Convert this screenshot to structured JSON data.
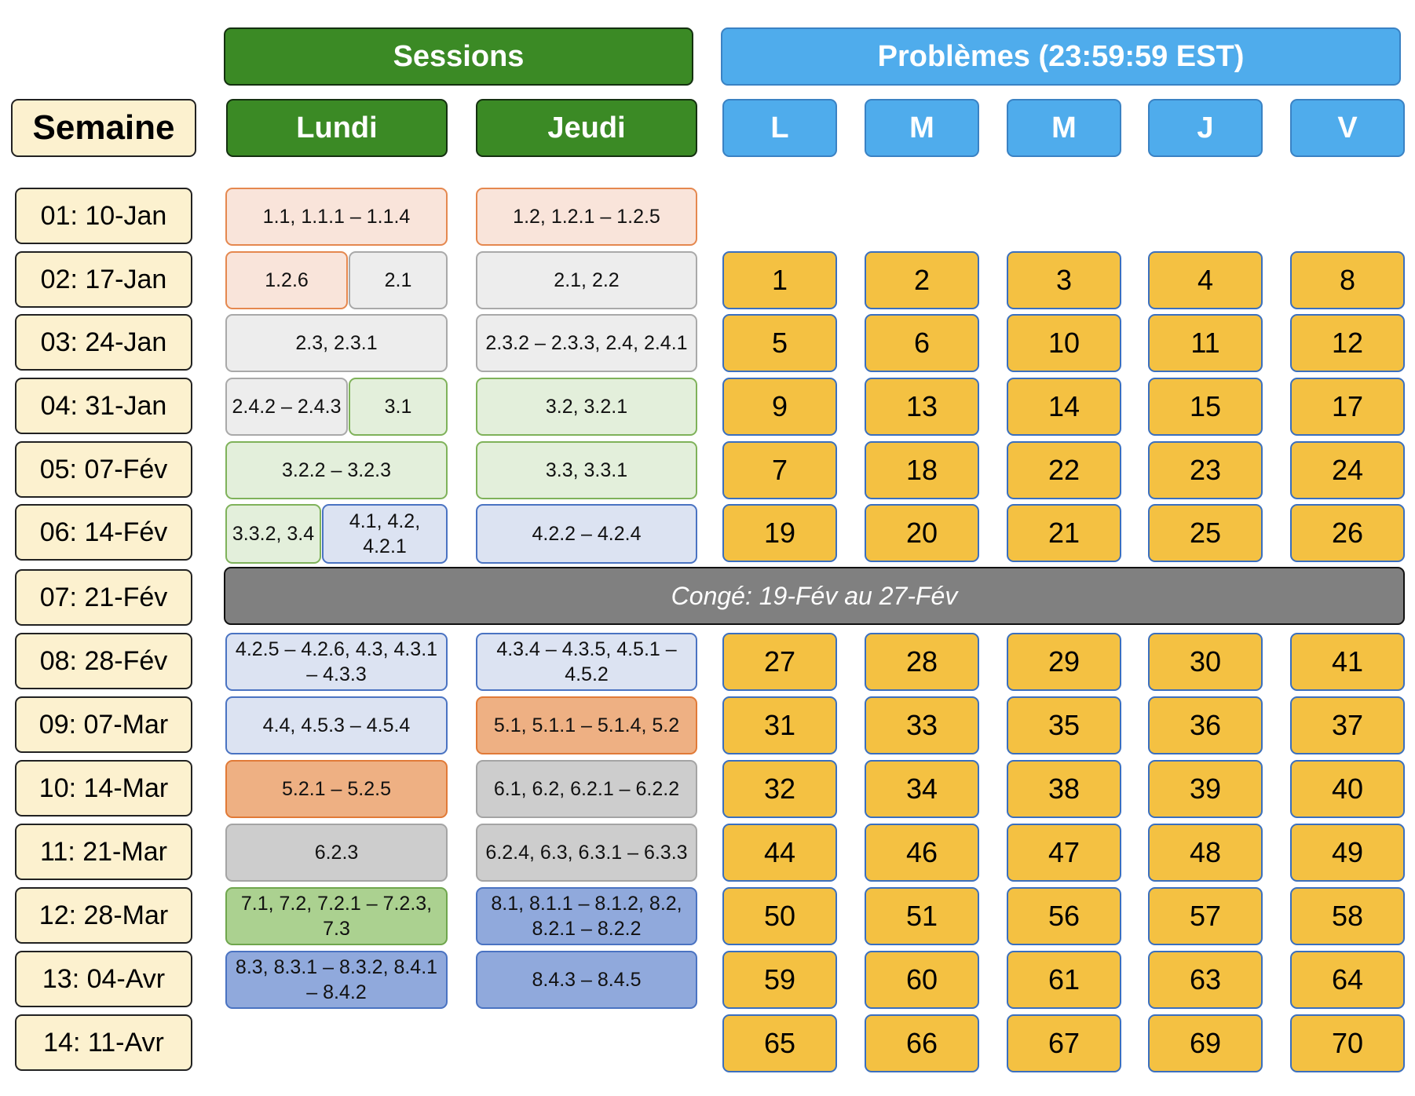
{
  "header": {
    "sessions_title": "Sessions",
    "problems_title": "Problèmes (23:59:59 EST)",
    "week_label": "Semaine",
    "session_days": [
      "Lundi",
      "Jeudi"
    ],
    "problem_days": [
      "L",
      "M",
      "M",
      "J",
      "V"
    ]
  },
  "weeks": [
    "01: 10-Jan",
    "02: 17-Jan",
    "03: 24-Jan",
    "04: 31-Jan",
    "05: 07-Fév",
    "06: 14-Fév",
    "07: 21-Fév",
    "08: 28-Fév",
    "09: 07-Mar",
    "10: 14-Mar",
    "11: 21-Mar",
    "12: 28-Mar",
    "13: 04-Avr",
    "14: 11-Avr"
  ],
  "sessions": [
    {
      "week": 1,
      "day": "Lundi",
      "text": "1.1, 1.1.1 – 1.1.4",
      "color": "#f9e4da"
    },
    {
      "week": 1,
      "day": "Jeudi",
      "text": "1.2, 1.2.1 – 1.2.5",
      "color": "#f9e4da"
    },
    {
      "week": 2,
      "day": "Lundi",
      "text": "1.2.6",
      "color": "#f9e4da"
    },
    {
      "week": 2,
      "day": "Lundi",
      "text": "2.1",
      "color": "#ededed"
    },
    {
      "week": 2,
      "day": "Jeudi",
      "text": "2.1, 2.2",
      "color": "#ededed"
    },
    {
      "week": 3,
      "day": "Lundi",
      "text": "2.3, 2.3.1",
      "color": "#ededed"
    },
    {
      "week": 3,
      "day": "Jeudi",
      "text": "2.3.2 – 2.3.3, 2.4, 2.4.1",
      "color": "#ededed"
    },
    {
      "week": 4,
      "day": "Lundi",
      "text": "2.4.2 – 2.4.3",
      "color": "#ededed"
    },
    {
      "week": 4,
      "day": "Lundi",
      "text": "3.1",
      "color": "#e3efdb"
    },
    {
      "week": 4,
      "day": "Jeudi",
      "text": "3.2, 3.2.1",
      "color": "#e3efdb"
    },
    {
      "week": 5,
      "day": "Lundi",
      "text": "3.2.2 – 3.2.3",
      "color": "#e3efdb"
    },
    {
      "week": 5,
      "day": "Jeudi",
      "text": "3.3, 3.3.1",
      "color": "#e3efdb"
    },
    {
      "week": 6,
      "day": "Lundi",
      "text": "3.3.2, 3.4",
      "color": "#e3efdb"
    },
    {
      "week": 6,
      "day": "Lundi",
      "text": "4.1, 4.2, 4.2.1",
      "color": "#dce3f2"
    },
    {
      "week": 6,
      "day": "Jeudi",
      "text": "4.2.2 – 4.2.4",
      "color": "#dce3f2"
    },
    {
      "week": 8,
      "day": "Lundi",
      "text": "4.2.5 – 4.2.6, 4.3, 4.3.1 – 4.3.3",
      "color": "#dce3f2"
    },
    {
      "week": 8,
      "day": "Jeudi",
      "text": "4.3.4 – 4.3.5, 4.5.1 – 4.5.2",
      "color": "#dce3f2"
    },
    {
      "week": 9,
      "day": "Lundi",
      "text": "4.4, 4.5.3 – 4.5.4",
      "color": "#dce3f2"
    },
    {
      "week": 9,
      "day": "Jeudi",
      "text": "5.1, 5.1.1 – 5.1.4, 5.2",
      "color": "#eeb083"
    },
    {
      "week": 10,
      "day": "Lundi",
      "text": "5.2.1 – 5.2.5",
      "color": "#eeb083"
    },
    {
      "week": 10,
      "day": "Jeudi",
      "text": "6.1, 6.2, 6.2.1 – 6.2.2",
      "color": "#cdcdcd"
    },
    {
      "week": 11,
      "day": "Lundi",
      "text": "6.2.3",
      "color": "#cdcdcd"
    },
    {
      "week": 11,
      "day": "Jeudi",
      "text": "6.2.4, 6.3, 6.3.1 – 6.3.3",
      "color": "#cdcdcd"
    },
    {
      "week": 12,
      "day": "Lundi",
      "text": "7.1, 7.2, 7.2.1 – 7.2.3, 7.3",
      "color": "#abd190"
    },
    {
      "week": 12,
      "day": "Jeudi",
      "text": "8.1, 8.1.1 – 8.1.2, 8.2, 8.2.1 – 8.2.2",
      "color": "#90a9dc"
    },
    {
      "week": 13,
      "day": "Lundi",
      "text": "8.3, 8.3.1 – 8.3.2, 8.4.1 – 8.4.2",
      "color": "#90a9dc"
    },
    {
      "week": 13,
      "day": "Jeudi",
      "text": "8.4.3 – 8.4.5",
      "color": "#90a9dc"
    }
  ],
  "holiday": {
    "week": 7,
    "text": "Congé: 19-Fév au 27-Fév"
  },
  "problems": [
    {
      "week": 2,
      "values": [
        "1",
        "2",
        "3",
        "4",
        "8"
      ]
    },
    {
      "week": 3,
      "values": [
        "5",
        "6",
        "10",
        "11",
        "12"
      ]
    },
    {
      "week": 4,
      "values": [
        "9",
        "13",
        "14",
        "15",
        "17"
      ]
    },
    {
      "week": 5,
      "values": [
        "7",
        "18",
        "22",
        "23",
        "24"
      ]
    },
    {
      "week": 6,
      "values": [
        "19",
        "20",
        "21",
        "25",
        "26"
      ]
    },
    {
      "week": 8,
      "values": [
        "27",
        "28",
        "29",
        "30",
        "41"
      ]
    },
    {
      "week": 9,
      "values": [
        "31",
        "33",
        "35",
        "36",
        "37"
      ]
    },
    {
      "week": 10,
      "values": [
        "32",
        "34",
        "38",
        "39",
        "40"
      ]
    },
    {
      "week": 11,
      "values": [
        "44",
        "46",
        "47",
        "48",
        "49"
      ]
    },
    {
      "week": 12,
      "values": [
        "50",
        "51",
        "56",
        "57",
        "58"
      ]
    },
    {
      "week": 13,
      "values": [
        "59",
        "60",
        "61",
        "63",
        "64"
      ]
    },
    {
      "week": 14,
      "values": [
        "65",
        "66",
        "67",
        "69",
        "70"
      ]
    }
  ],
  "colors": {
    "sessions_header": "#3b8a25",
    "problems_header": "#4facec",
    "week_cell": "#fcf1cf",
    "problem_cell": "#f4c142",
    "holiday_bar": "#808080"
  }
}
